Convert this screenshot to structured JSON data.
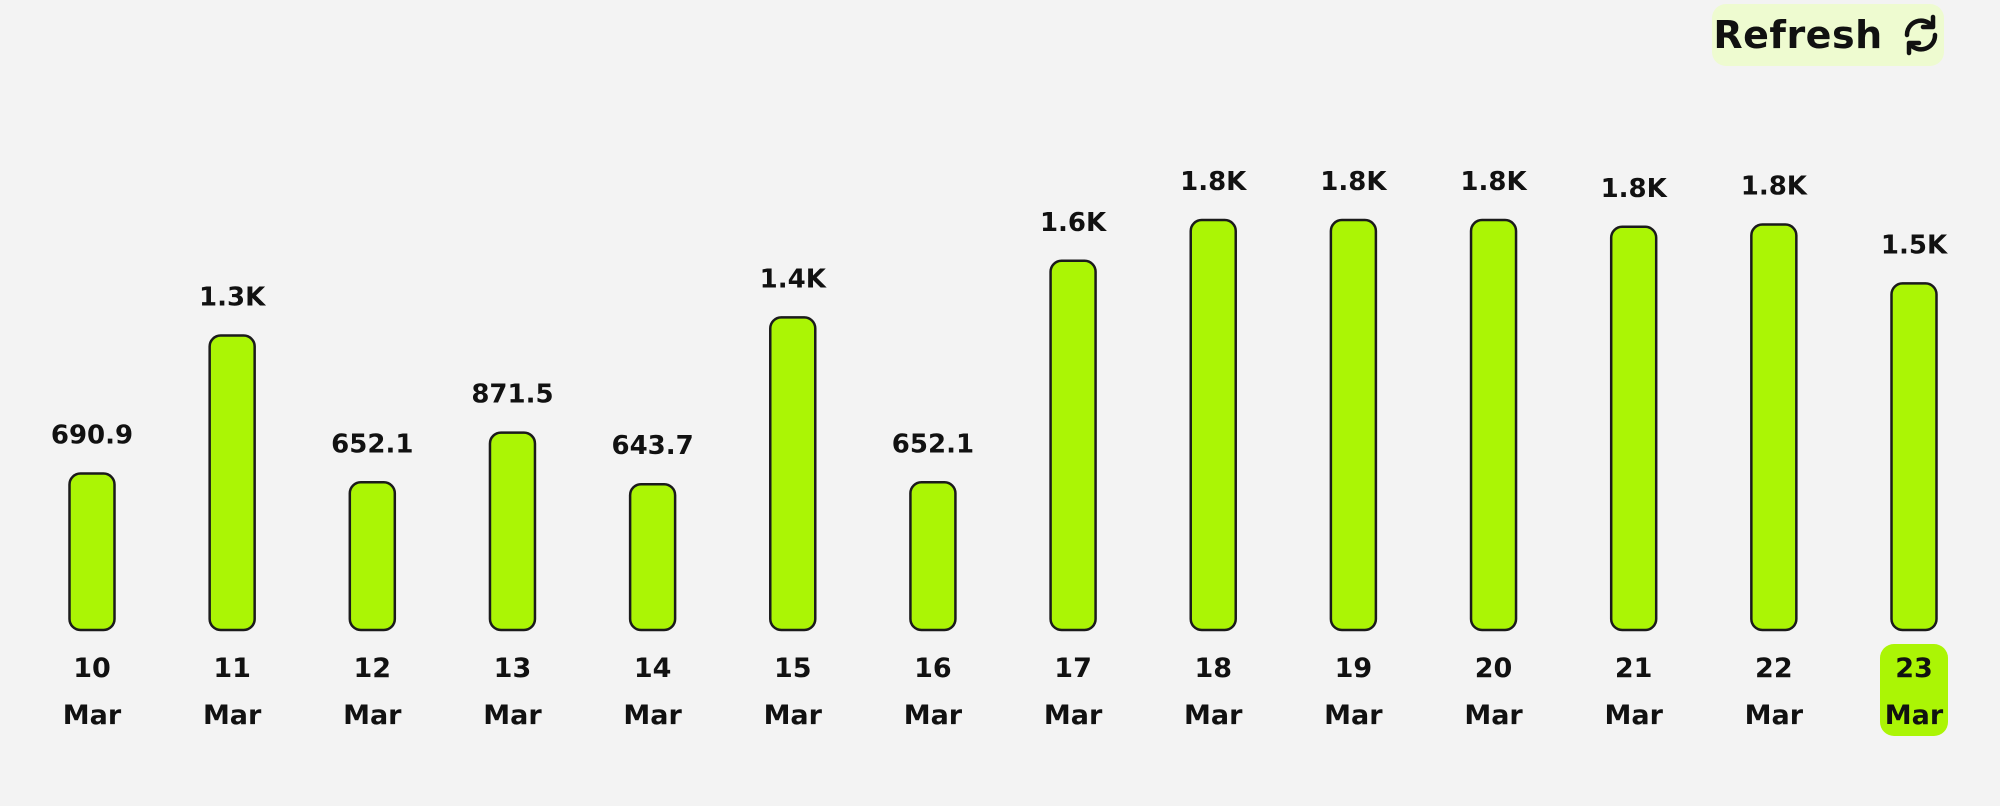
{
  "toolbar": {
    "refresh_label": "Refresh",
    "refresh_icon": "refresh-icon"
  },
  "colors": {
    "bar_fill": "#abf505",
    "bar_stroke": "#1b1b1b",
    "background": "#f3f3f3",
    "refresh_bg": "#eefbd0"
  },
  "chart_data": {
    "type": "bar",
    "categories": [
      [
        "10",
        "Mar"
      ],
      [
        "11",
        "Mar"
      ],
      [
        "12",
        "Mar"
      ],
      [
        "13",
        "Mar"
      ],
      [
        "14",
        "Mar"
      ],
      [
        "15",
        "Mar"
      ],
      [
        "16",
        "Mar"
      ],
      [
        "17",
        "Mar"
      ],
      [
        "18",
        "Mar"
      ],
      [
        "19",
        "Mar"
      ],
      [
        "20",
        "Mar"
      ],
      [
        "21",
        "Mar"
      ],
      [
        "22",
        "Mar"
      ],
      [
        "23",
        "Mar"
      ]
    ],
    "values": [
      690.9,
      1300,
      652.1,
      871.5,
      643.7,
      1380,
      652.1,
      1630,
      1810,
      1810,
      1810,
      1780,
      1790,
      1530
    ],
    "data_labels": [
      "690.9",
      "1.3K",
      "652.1",
      "871.5",
      "643.7",
      "1.4K",
      "652.1",
      "1.6K",
      "1.8K",
      "1.8K",
      "1.8K",
      "1.8K",
      "1.8K",
      "1.5K"
    ],
    "selected_index": 13,
    "title": "",
    "xlabel": "",
    "ylabel": "",
    "ylim": [
      0,
      1810
    ],
    "grid": false,
    "legend": "none"
  }
}
